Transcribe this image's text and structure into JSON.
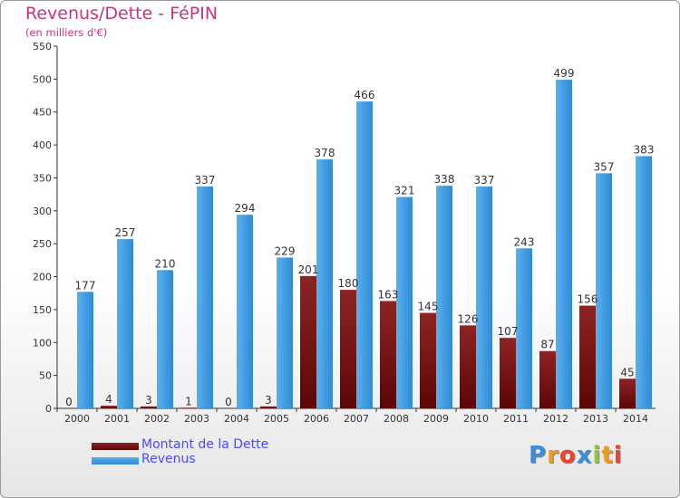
{
  "chart_data": {
    "type": "bar",
    "title": "Revenus/Dette - FéPIN",
    "subtitle": "(en milliers d'€)",
    "categories": [
      "2000",
      "2001",
      "2002",
      "2003",
      "2004",
      "2005",
      "2006",
      "2007",
      "2008",
      "2009",
      "2010",
      "2011",
      "2012",
      "2013",
      "2014"
    ],
    "series": [
      {
        "name": "Montant de la Dette",
        "color": "#7a1212",
        "values": [
          0,
          4,
          3,
          1,
          0,
          3,
          201,
          180,
          163,
          145,
          126,
          107,
          87,
          156,
          45
        ],
        "labels": [
          "0",
          "4",
          "3",
          "1",
          "0",
          "3",
          "201",
          "180",
          "163",
          "145",
          "126",
          "107",
          "87",
          "156",
          "45"
        ]
      },
      {
        "name": "Revenus",
        "color": "#3f9de0",
        "values": [
          177,
          257,
          210,
          337,
          294,
          229,
          378,
          466,
          321,
          338,
          337,
          243,
          499,
          357,
          383
        ],
        "labels": [
          "177",
          "257",
          "210",
          "337",
          "294",
          "229",
          "378",
          "466",
          "321",
          "338",
          "337",
          "243",
          "499",
          "357",
          "383"
        ]
      }
    ],
    "ylim": [
      0,
      550
    ],
    "yticks": [
      0,
      50,
      100,
      150,
      200,
      250,
      300,
      350,
      400,
      450,
      500,
      550
    ],
    "yticklabels": [
      "0",
      "50",
      "100",
      "150",
      "200",
      "250",
      "300",
      "350",
      "400",
      "450",
      "500",
      "550"
    ],
    "grid": false,
    "legend": "bottom-left"
  },
  "logo": {
    "letters": [
      "P",
      "r",
      "o",
      "x",
      "i",
      "t",
      "i"
    ],
    "colors": [
      "#3b8fd9",
      "#f29a1c",
      "#e8462b",
      "#3b8fd9",
      "#8cc43c",
      "#f29a1c",
      "#e8462b"
    ]
  }
}
